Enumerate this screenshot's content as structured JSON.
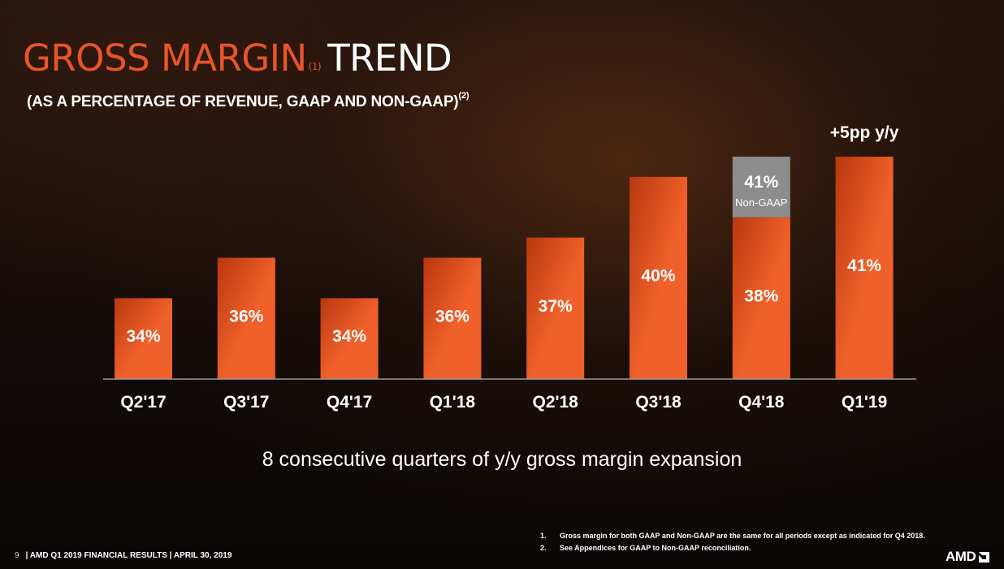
{
  "slide": {
    "title_accent": "GROSS MARGIN",
    "title_sup": "(1)",
    "title_rest": "TREND",
    "subtitle": "(AS A PERCENTAGE OF REVENUE, GAAP AND NON-GAAP)",
    "subtitle_sup": "(2)",
    "headline": "8 consecutive quarters of y/y gross margin expansion",
    "footnotes": [
      {
        "num": "1.",
        "text": "Gross margin for both GAAP and Non-GAAP are the same for all periods except as indicated for Q4 2018."
      },
      {
        "num": "2.",
        "text": "See Appendices for GAAP to Non-GAAP reconciliation."
      }
    ],
    "page_number": "9",
    "footer": "| AMD Q1 2019 FINANCIAL RESULTS | APRIL 30, 2019",
    "logo_text": "AMD"
  },
  "colors": {
    "bar_dark": "#b8380f",
    "bar_light": "#f0602a",
    "non_gaap_block": "#8c8c8c",
    "accent": "#e8552a"
  },
  "chart_data": {
    "type": "bar",
    "categories": [
      "Q2'17",
      "Q3'17",
      "Q4'17",
      "Q1'18",
      "Q2'18",
      "Q3'18",
      "Q4'18",
      "Q1'19"
    ],
    "series": [
      {
        "values": [
          34,
          36,
          34,
          36,
          37,
          40,
          38,
          41
        ]
      }
    ],
    "data_labels": [
      "34%",
      "36%",
      "34%",
      "36%",
      "37%",
      "40%",
      "38%",
      "41%"
    ],
    "stacked_segment": {
      "category": "Q4'18",
      "value": 41,
      "value_label": "41%",
      "label": "Non-GAAP"
    },
    "annotation": {
      "category": "Q1'19",
      "text": "+5pp y/y"
    },
    "ylim": [
      30,
      41
    ],
    "grid": false,
    "legend": "none"
  }
}
